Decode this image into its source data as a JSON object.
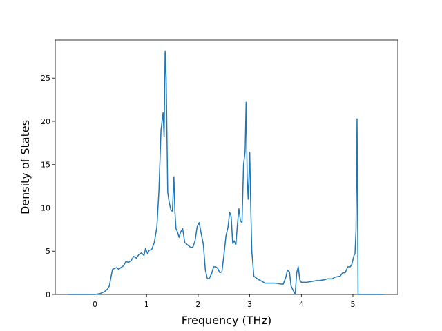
{
  "chart_data": {
    "type": "line",
    "title": "",
    "xlabel": "Frequency (THz)",
    "ylabel": "Density of States",
    "xlim": [
      -0.77,
      5.87
    ],
    "ylim": [
      0,
      29.4
    ],
    "xticks": [
      0,
      1,
      2,
      3,
      4,
      5
    ],
    "yticks": [
      0,
      5,
      10,
      15,
      20,
      25
    ],
    "grid": false,
    "legend": "none",
    "line_color": "#1f77b4",
    "series": [
      {
        "x": [
          -0.52,
          0.0,
          0.1,
          0.18,
          0.24,
          0.28,
          0.31,
          0.34,
          0.38,
          0.42,
          0.46,
          0.5,
          0.55,
          0.6,
          0.65,
          0.7,
          0.75,
          0.8,
          0.85,
          0.9,
          0.95,
          0.98,
          1.02,
          1.05,
          1.1,
          1.15,
          1.2,
          1.24,
          1.28,
          1.32,
          1.34,
          1.36,
          1.38,
          1.41,
          1.44,
          1.47,
          1.5,
          1.53,
          1.55,
          1.57,
          1.6,
          1.63,
          1.66,
          1.7,
          1.74,
          1.78,
          1.82,
          1.86,
          1.9,
          1.94,
          1.98,
          2.02,
          2.06,
          2.1,
          2.14,
          2.18,
          2.22,
          2.26,
          2.3,
          2.34,
          2.38,
          2.42,
          2.46,
          2.5,
          2.54,
          2.58,
          2.61,
          2.64,
          2.67,
          2.7,
          2.73,
          2.76,
          2.79,
          2.82,
          2.85,
          2.88,
          2.91,
          2.93,
          2.95,
          2.97,
          3.0,
          3.02,
          3.04,
          3.08,
          3.15,
          3.3,
          3.5,
          3.6,
          3.65,
          3.7,
          3.73,
          3.77,
          3.8,
          3.88,
          3.91,
          3.94,
          3.97,
          4.0,
          4.1,
          4.2,
          4.3,
          4.35,
          4.45,
          4.5,
          4.6,
          4.65,
          4.75,
          4.8,
          4.85,
          4.9,
          4.95,
          4.98,
          5.02,
          5.04,
          5.06,
          5.08,
          5.1,
          5.6
        ],
        "y": [
          0,
          0,
          0.1,
          0.3,
          0.6,
          1.0,
          2.0,
          2.9,
          3.0,
          3.1,
          2.9,
          3.1,
          3.3,
          3.8,
          3.7,
          3.9,
          4.4,
          4.2,
          4.6,
          4.8,
          4.5,
          5.3,
          4.7,
          5.1,
          5.2,
          6.0,
          7.8,
          12.0,
          19.0,
          21.0,
          18.2,
          28.1,
          25.0,
          11.8,
          10.6,
          9.8,
          9.6,
          13.6,
          9.5,
          7.6,
          7.2,
          6.6,
          7.2,
          7.6,
          6.0,
          5.8,
          5.6,
          5.4,
          5.5,
          6.2,
          7.8,
          8.3,
          7.0,
          5.8,
          2.8,
          1.8,
          1.9,
          2.4,
          3.2,
          3.2,
          3.0,
          2.5,
          2.6,
          4.6,
          6.8,
          7.8,
          9.5,
          9.0,
          5.9,
          6.2,
          5.7,
          8.0,
          9.9,
          8.5,
          8.3,
          15.0,
          16.5,
          22.2,
          13.5,
          11.0,
          16.4,
          10.0,
          5.0,
          2.1,
          1.8,
          1.3,
          1.3,
          1.2,
          1.2,
          2.0,
          2.8,
          2.6,
          1.0,
          0,
          2.5,
          3.2,
          1.7,
          1.4,
          1.4,
          1.5,
          1.6,
          1.6,
          1.7,
          1.8,
          1.8,
          2.0,
          2.1,
          2.5,
          2.5,
          3.2,
          3.2,
          3.5,
          4.5,
          4.7,
          7.5,
          20.3,
          0,
          0
        ]
      }
    ]
  }
}
